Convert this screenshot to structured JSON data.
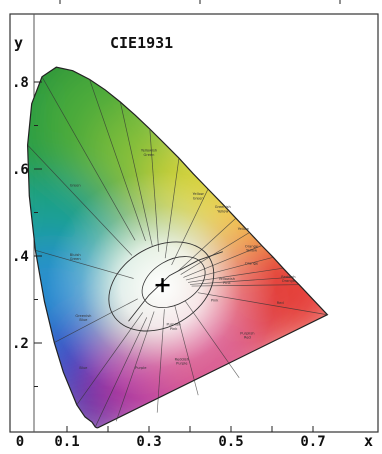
{
  "chart_data": {
    "type": "scatter",
    "title": "CIE1931",
    "xlabel": "x",
    "ylabel": "y",
    "x_ticks": [
      "0",
      "0.1",
      "0.3",
      "0.5",
      "0.7"
    ],
    "x_tick_values": [
      0.0,
      0.1,
      0.3,
      0.5,
      0.7
    ],
    "y_ticks": [
      ".2",
      ".4",
      ".6",
      ".8"
    ],
    "y_tick_values": [
      0.2,
      0.4,
      0.6,
      0.8
    ],
    "xlim": [
      0.0,
      0.8
    ],
    "ylim": [
      0.0,
      0.9
    ],
    "white_point": {
      "x": 0.333,
      "y": 0.333
    },
    "spectral_locus": [
      [
        0.175,
        0.005
      ],
      [
        0.173,
        0.005
      ],
      [
        0.169,
        0.007
      ],
      [
        0.161,
        0.018
      ],
      [
        0.144,
        0.03
      ],
      [
        0.124,
        0.058
      ],
      [
        0.091,
        0.133
      ],
      [
        0.069,
        0.201
      ],
      [
        0.045,
        0.295
      ],
      [
        0.023,
        0.413
      ],
      [
        0.008,
        0.538
      ],
      [
        0.004,
        0.655
      ],
      [
        0.014,
        0.75
      ],
      [
        0.039,
        0.812
      ],
      [
        0.074,
        0.834
      ],
      [
        0.114,
        0.826
      ],
      [
        0.155,
        0.806
      ],
      [
        0.193,
        0.782
      ],
      [
        0.23,
        0.754
      ],
      [
        0.266,
        0.724
      ],
      [
        0.302,
        0.692
      ],
      [
        0.337,
        0.659
      ],
      [
        0.373,
        0.625
      ],
      [
        0.408,
        0.589
      ],
      [
        0.444,
        0.554
      ],
      [
        0.479,
        0.52
      ],
      [
        0.512,
        0.487
      ],
      [
        0.545,
        0.454
      ],
      [
        0.575,
        0.424
      ],
      [
        0.603,
        0.397
      ],
      [
        0.627,
        0.372
      ],
      [
        0.648,
        0.351
      ],
      [
        0.666,
        0.334
      ],
      [
        0.735,
        0.265
      ]
    ],
    "regions": [
      {
        "label": "Yellowish Green",
        "x": 0.3,
        "y": 0.64
      },
      {
        "label": "Green",
        "x": 0.12,
        "y": 0.56
      },
      {
        "label": "Yellow Green",
        "x": 0.42,
        "y": 0.54
      },
      {
        "label": "Greenish Yellow",
        "x": 0.48,
        "y": 0.51
      },
      {
        "label": "Yellow",
        "x": 0.53,
        "y": 0.46
      },
      {
        "label": "Orange Yellow",
        "x": 0.55,
        "y": 0.42
      },
      {
        "label": "Bluish Green",
        "x": 0.12,
        "y": 0.4
      },
      {
        "label": "Orange",
        "x": 0.55,
        "y": 0.38
      },
      {
        "label": "Yellowish Pink",
        "x": 0.49,
        "y": 0.345
      },
      {
        "label": "Reddish Orange",
        "x": 0.64,
        "y": 0.35
      },
      {
        "label": "Pink",
        "x": 0.46,
        "y": 0.295
      },
      {
        "label": "Red",
        "x": 0.62,
        "y": 0.29
      },
      {
        "label": "Greenish Blue",
        "x": 0.14,
        "y": 0.26
      },
      {
        "label": "Purplish Pink",
        "x": 0.36,
        "y": 0.24
      },
      {
        "label": "Purplish Red",
        "x": 0.54,
        "y": 0.22
      },
      {
        "label": "Blue",
        "x": 0.14,
        "y": 0.14
      },
      {
        "label": "Purple",
        "x": 0.28,
        "y": 0.14
      },
      {
        "label": "Reddish Purple",
        "x": 0.38,
        "y": 0.16
      }
    ]
  }
}
